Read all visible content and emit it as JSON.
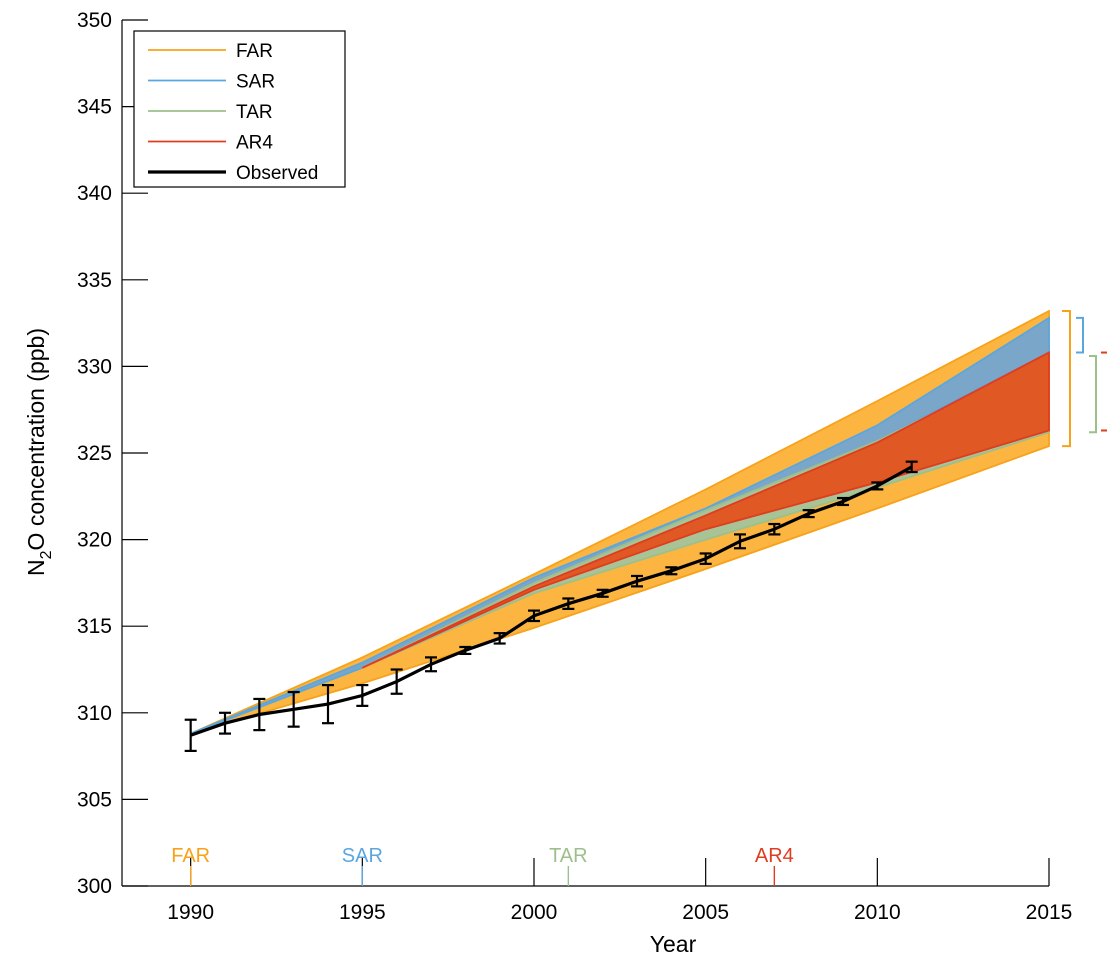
{
  "chart_data": {
    "type": "area",
    "xlabel": "Year",
    "ylabel_main": "N",
    "ylabel_sub": "2",
    "ylabel_rest": "O concentration (ppb)",
    "xlim": [
      1988,
      2015
    ],
    "ylim": [
      300,
      350
    ],
    "xticks": [
      1990,
      1995,
      2000,
      2005,
      2010,
      2015
    ],
    "yticks": [
      300,
      305,
      310,
      315,
      320,
      325,
      330,
      335,
      340,
      345,
      350
    ],
    "legend_position": "top-left",
    "series": [
      {
        "name": "FAR",
        "color": "#f7a21b",
        "fill": "#fbb540",
        "x": [
          1990,
          1995,
          2000,
          2005,
          2010,
          2015
        ],
        "upper": [
          308.8,
          313.2,
          318.0,
          322.9,
          328.0,
          333.2
        ],
        "lower": [
          308.8,
          311.7,
          314.9,
          318.3,
          321.8,
          325.4
        ]
      },
      {
        "name": "SAR",
        "color": "#5aa7e0",
        "fill": "#7aa6c9",
        "x": [
          1990,
          1995,
          2000,
          2005,
          2010,
          2015
        ],
        "upper": [
          308.8,
          312.9,
          317.8,
          321.8,
          326.6,
          332.8
        ],
        "lower": [
          308.8,
          312.6,
          317.2,
          321.2,
          325.7,
          330.8
        ]
      },
      {
        "name": "TAR",
        "color": "#9cbf8c",
        "fill": "#a8c497",
        "x": [
          1995,
          2000,
          2005,
          2010,
          2015
        ],
        "upper": [
          312.6,
          317.5,
          321.7,
          325.7,
          330.6
        ],
        "lower": [
          312.6,
          316.9,
          320.0,
          323.0,
          326.2
        ]
      },
      {
        "name": "AR4",
        "color": "#e03c1f",
        "fill": "#e05824",
        "x": [
          1995,
          2000,
          2005,
          2010,
          2015
        ],
        "upper": [
          312.6,
          317.3,
          321.4,
          325.6,
          330.8
        ],
        "lower": [
          312.6,
          317.1,
          320.6,
          323.3,
          326.3
        ]
      }
    ],
    "observed": {
      "name": "Observed",
      "color": "#000000",
      "x": [
        1990,
        1991,
        1992,
        1993,
        1994,
        1995,
        1996,
        1997,
        1998,
        1999,
        2000,
        2001,
        2002,
        2003,
        2004,
        2005,
        2006,
        2007,
        2008,
        2009,
        2010,
        2011
      ],
      "y": [
        308.7,
        309.4,
        309.9,
        310.2,
        310.5,
        311.0,
        311.8,
        312.8,
        313.6,
        314.3,
        315.6,
        316.3,
        316.9,
        317.6,
        318.2,
        318.9,
        319.9,
        320.6,
        321.5,
        322.2,
        323.1,
        324.2
      ],
      "err": [
        0.9,
        0.6,
        0.9,
        1.0,
        1.1,
        0.6,
        0.7,
        0.4,
        0.2,
        0.3,
        0.3,
        0.3,
        0.2,
        0.3,
        0.2,
        0.3,
        0.4,
        0.3,
        0.2,
        0.2,
        0.2,
        0.3
      ]
    },
    "report_markers": [
      {
        "label": "FAR",
        "year": 1990,
        "color": "#f7a21b"
      },
      {
        "label": "SAR",
        "year": 1995,
        "color": "#5aa7e0"
      },
      {
        "label": "TAR",
        "year": 2001,
        "color": "#9cbf8c"
      },
      {
        "label": "AR4",
        "year": 2007,
        "color": "#e03c1f"
      }
    ]
  }
}
